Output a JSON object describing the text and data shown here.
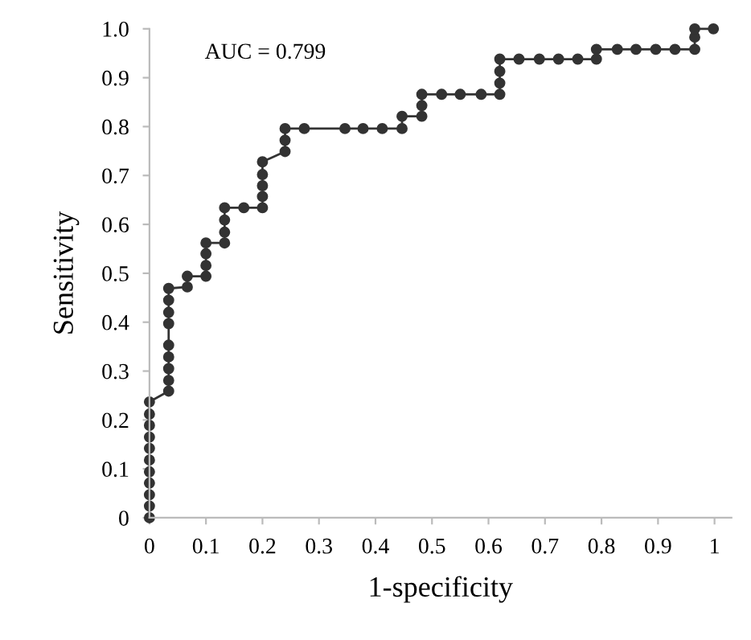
{
  "chart_data": {
    "type": "line",
    "xlabel": "1-specificity",
    "ylabel": "Sensitivity",
    "annotations": [
      "AUC = 0.799"
    ],
    "series": [
      {
        "color": "#333333",
        "x": [
          0,
          0,
          0,
          0,
          0,
          0,
          0,
          0,
          0,
          0,
          0,
          0.034,
          0.034,
          0.034,
          0.034,
          0.034,
          0.034,
          0.034,
          0.034,
          0.034,
          0.067,
          0.067,
          0.1,
          0.1,
          0.1,
          0.1,
          0.133,
          0.133,
          0.133,
          0.133,
          0.167,
          0.2,
          0.2,
          0.2,
          0.2,
          0.2,
          0.24,
          0.24,
          0.24,
          0.274,
          0.346,
          0.378,
          0.412,
          0.447,
          0.447,
          0.482,
          0.482,
          0.482,
          0.517,
          0.55,
          0.587,
          0.62,
          0.62,
          0.62,
          0.62,
          0.654,
          0.69,
          0.724,
          0.758,
          0.791,
          0.791,
          0.828,
          0.861,
          0.896,
          0.93,
          0.965,
          0.965,
          0.965,
          0.998
        ],
        "values": [
          0,
          0.024,
          0.047,
          0.071,
          0.094,
          0.118,
          0.142,
          0.165,
          0.189,
          0.212,
          0.237,
          0.259,
          0.281,
          0.305,
          0.329,
          0.353,
          0.397,
          0.42,
          0.445,
          0.469,
          0.472,
          0.494,
          0.494,
          0.516,
          0.54,
          0.562,
          0.562,
          0.584,
          0.609,
          0.634,
          0.634,
          0.634,
          0.657,
          0.679,
          0.702,
          0.728,
          0.749,
          0.772,
          0.796,
          0.796,
          0.796,
          0.796,
          0.796,
          0.796,
          0.821,
          0.821,
          0.843,
          0.866,
          0.866,
          0.866,
          0.866,
          0.866,
          0.889,
          0.913,
          0.938,
          0.938,
          0.938,
          0.938,
          0.938,
          0.938,
          0.958,
          0.958,
          0.958,
          0.958,
          0.958,
          0.958,
          0.983,
          1.0,
          1.0
        ]
      }
    ],
    "marker": "circle",
    "line_style": "solid",
    "grid": false,
    "legend": false,
    "xlim": [
      0,
      1.03
    ],
    "ylim": [
      0,
      1.0
    ],
    "xticks": [
      0,
      0.1,
      0.2,
      0.3,
      0.4,
      0.5,
      0.6,
      0.7,
      0.8,
      0.9,
      1
    ],
    "yticks": [
      0,
      0.1,
      0.2,
      0.3,
      0.4,
      0.5,
      0.6,
      0.7,
      0.8,
      0.9,
      {
        "value": 1,
        "label": "1.0"
      }
    ]
  }
}
